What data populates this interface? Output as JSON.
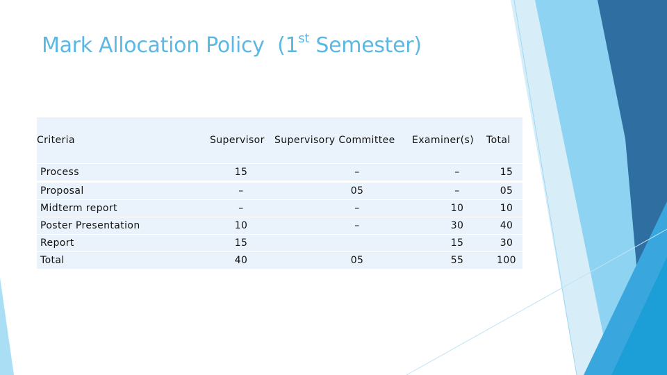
{
  "header": {
    "title": "Mark Allocation Policy  (1",
    "title_sup": "st",
    "title_end": " Semester)"
  },
  "table": {
    "columns": [
      "Criteria",
      "Supervisor",
      "Supervisory Committee",
      "Examiner(s)",
      "Total"
    ],
    "rows": [
      [
        "Process",
        "15",
        "–",
        "–",
        "15"
      ],
      [
        "Proposal",
        "–",
        "05",
        "–",
        "05"
      ],
      [
        "Midterm report",
        "–",
        "–",
        "10",
        "10"
      ],
      [
        "Poster Presentation",
        "10",
        "–",
        "30",
        "40"
      ],
      [
        "Report",
        "15",
        null,
        "15",
        "30"
      ],
      [
        "Total",
        "40",
        "05",
        "55",
        "100"
      ]
    ]
  }
}
